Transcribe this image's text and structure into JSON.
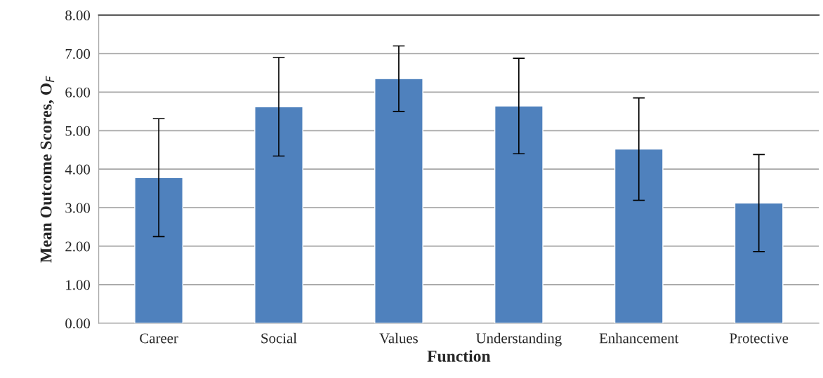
{
  "chart_data": {
    "type": "bar",
    "xlabel": "Function",
    "ylabel": "Mean Outcome Scores, O$_{F}$",
    "categories": [
      "Career",
      "Social",
      "Values",
      "Understanding",
      "Enhancement",
      "Protective"
    ],
    "values": [
      3.78,
      5.62,
      6.35,
      5.64,
      4.52,
      3.12
    ],
    "errors": [
      1.53,
      1.28,
      0.85,
      1.24,
      1.33,
      1.26
    ],
    "color": "#4f81bd",
    "ylim": [
      0,
      8
    ],
    "yticks": [
      {
        "value": 0,
        "label": "0.00"
      },
      {
        "value": 1,
        "label": "1.00"
      },
      {
        "value": 2,
        "label": "2.00"
      },
      {
        "value": 3,
        "label": "3.00"
      },
      {
        "value": 4,
        "label": "4.00"
      },
      {
        "value": 5,
        "label": "5.00"
      },
      {
        "value": 6,
        "label": "6.00"
      },
      {
        "value": 7,
        "label": "7.00"
      },
      {
        "value": 8,
        "label": "8.00"
      }
    ],
    "grid": "y"
  }
}
